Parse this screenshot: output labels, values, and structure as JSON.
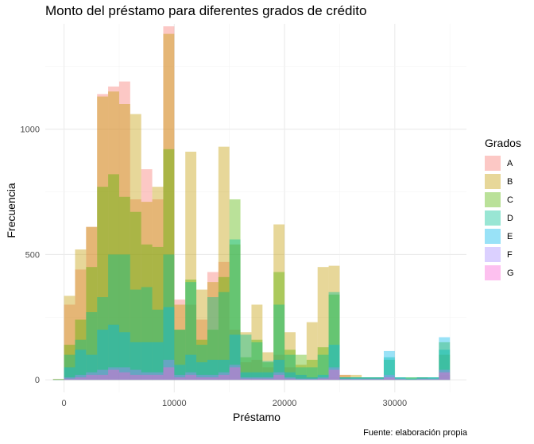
{
  "chart_data": {
    "type": "bar",
    "stacking": "overlay",
    "title": "Monto del préstamo para diferentes grados de crédito",
    "xlabel": "Préstamo",
    "ylabel": "Frecuencia",
    "caption": "Fuente: elaboración propia",
    "legend_title": "Grados",
    "legend_position": "right",
    "grid": true,
    "xlim": [
      -1700,
      36500
    ],
    "ylim": [
      -50,
      1420
    ],
    "x_ticks": [
      0,
      10000,
      20000,
      30000
    ],
    "x_tick_labels": [
      "0",
      "10000",
      "20000",
      "30000"
    ],
    "y_ticks": [
      0,
      500,
      1000
    ],
    "y_tick_labels": [
      "0",
      "500",
      "1000"
    ],
    "bin_width": 1000,
    "x": [
      -500,
      500,
      1500,
      2500,
      3500,
      4500,
      5500,
      6500,
      7500,
      8500,
      9500,
      10500,
      11500,
      12500,
      13500,
      14500,
      15500,
      16500,
      17500,
      18500,
      19500,
      20500,
      21500,
      22500,
      23500,
      24500,
      25500,
      26500,
      27500,
      28500,
      29500,
      30500,
      31500,
      32500,
      33500,
      34500
    ],
    "series": [
      {
        "name": "A",
        "color": "#F8766D",
        "values": [
          1,
          300,
          440,
          610,
          1140,
          1170,
          1190,
          720,
          840,
          720,
          1410,
          320,
          300,
          240,
          430,
          470,
          200,
          70,
          80,
          50,
          100,
          50,
          20,
          10,
          10,
          10,
          20,
          0,
          5,
          5,
          5,
          2,
          1,
          1,
          1,
          20
        ]
      },
      {
        "name": "B",
        "color": "#C49A00",
        "values": [
          4,
          335,
          520,
          610,
          1130,
          1150,
          1100,
          1060,
          710,
          770,
          1380,
          300,
          910,
          360,
          390,
          930,
          540,
          190,
          300,
          110,
          620,
          190,
          60,
          230,
          450,
          455,
          20,
          20,
          10,
          10,
          5,
          5,
          5,
          10,
          5,
          100
        ]
      },
      {
        "name": "C",
        "color": "#53B400",
        "values": [
          2,
          140,
          240,
          450,
          770,
          820,
          730,
          670,
          540,
          530,
          920,
          200,
          400,
          160,
          200,
          410,
          720,
          90,
          160,
          70,
          430,
          120,
          100,
          80,
          130,
          340,
          10,
          10,
          10,
          10,
          80,
          10,
          10,
          10,
          10,
          150
        ]
      },
      {
        "name": "D",
        "color": "#00C094",
        "values": [
          2,
          100,
          160,
          270,
          330,
          500,
          500,
          360,
          370,
          280,
          500,
          200,
          390,
          140,
          330,
          350,
          560,
          180,
          150,
          75,
          300,
          100,
          50,
          50,
          100,
          350,
          10,
          10,
          10,
          10,
          90,
          10,
          10,
          10,
          10,
          120
        ]
      },
      {
        "name": "E",
        "color": "#00B6EB",
        "values": [
          1,
          50,
          120,
          100,
          200,
          220,
          190,
          150,
          150,
          150,
          290,
          60,
          100,
          70,
          80,
          80,
          180,
          30,
          30,
          30,
          80,
          30,
          20,
          10,
          20,
          140,
          10,
          10,
          10,
          10,
          115,
          10,
          5,
          10,
          10,
          170
        ]
      },
      {
        "name": "F",
        "color": "#A58AFF",
        "values": [
          0,
          10,
          20,
          30,
          40,
          50,
          50,
          40,
          30,
          30,
          80,
          20,
          30,
          20,
          20,
          30,
          60,
          10,
          10,
          10,
          30,
          10,
          5,
          5,
          10,
          50,
          5,
          5,
          5,
          5,
          20,
          5,
          2,
          5,
          5,
          40
        ]
      },
      {
        "name": "G",
        "color": "#FB61D7",
        "values": [
          0,
          5,
          10,
          20,
          20,
          40,
          30,
          20,
          20,
          20,
          50,
          10,
          20,
          10,
          10,
          20,
          50,
          5,
          5,
          5,
          20,
          5,
          2,
          2,
          5,
          40,
          2,
          2,
          2,
          2,
          10,
          2,
          1,
          2,
          2,
          30
        ]
      }
    ]
  }
}
